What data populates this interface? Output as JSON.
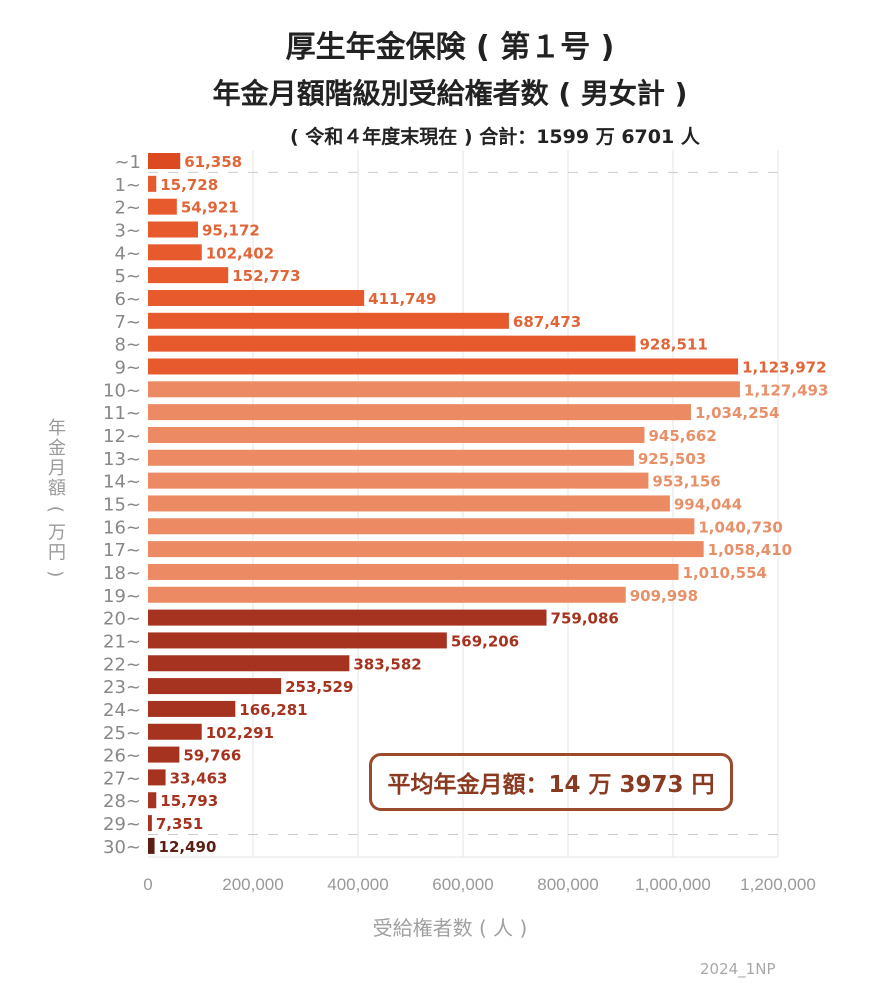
{
  "title": "厚生年金保険 ( 第１号 )",
  "subtitle": "年金月額階級別受給権者数 ( 男女計 )",
  "note": "( 令和４年度末現在 ) 合計：1599 万 6701 人",
  "average_box": "平均年金月額：14 万 3973 円",
  "credit": "2024_1NP",
  "chart_data": {
    "type": "bar",
    "orientation": "horizontal",
    "xlabel": "受給権者数 ( 人 )",
    "ylabel": "年金月額 ( 万円 )",
    "xlim": [
      0,
      1200000
    ],
    "xticks": [
      "0",
      "200,000",
      "400,000",
      "600,000",
      "800,000",
      "1,000,000",
      "1,200,000"
    ],
    "grid": "vertical",
    "categories": [
      "~1",
      "1~",
      "2~",
      "3~",
      "4~",
      "5~",
      "6~",
      "7~",
      "8~",
      "9~",
      "10~",
      "11~",
      "12~",
      "13~",
      "14~",
      "15~",
      "16~",
      "17~",
      "18~",
      "19~",
      "20~",
      "21~",
      "22~",
      "23~",
      "24~",
      "25~",
      "26~",
      "27~",
      "28~",
      "29~",
      "30~"
    ],
    "values": [
      61358,
      15728,
      54921,
      95172,
      102402,
      152773,
      411749,
      687473,
      928511,
      1123972,
      1127493,
      1034254,
      945662,
      925503,
      953156,
      994044,
      1040730,
      1058410,
      1010554,
      909998,
      759086,
      569206,
      383582,
      253529,
      166281,
      102291,
      59766,
      33463,
      15793,
      7351,
      12490
    ],
    "labels": [
      "61,358",
      "15,728",
      "54,921",
      "95,172",
      "102,402",
      "152,773",
      "411,749",
      "687,473",
      "928,511",
      "1,123,972",
      "1,127,493",
      "1,034,254",
      "945,662",
      "925,503",
      "953,156",
      "994,044",
      "1,040,730",
      "1,058,410",
      "1,010,554",
      "909,998",
      "759,086",
      "569,206",
      "383,582",
      "253,529",
      "166,281",
      "102,291",
      "59,766",
      "33,463",
      "15,793",
      "7,351",
      "12,490"
    ],
    "colors": {
      "under1": "#dc4a22",
      "1to9": "#e65a2e",
      "10to19": "#ec8a64",
      "20to29": "#a5331f",
      "30plus": "#5a1e12"
    },
    "label_colors": {
      "under10": "#e0663a",
      "10to19": "#e8906a",
      "20to29": "#a5331f",
      "30plus": "#5a1e12"
    }
  }
}
